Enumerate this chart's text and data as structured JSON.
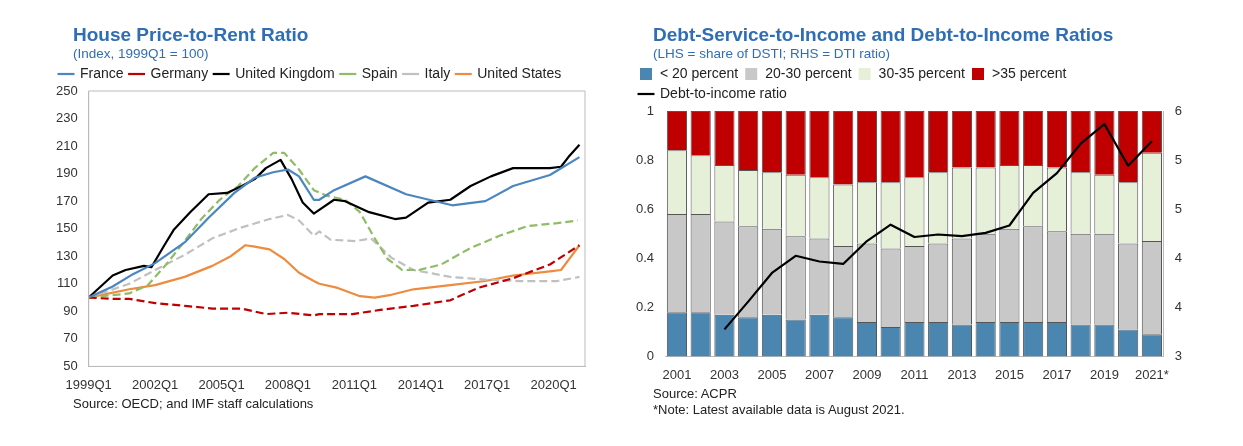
{
  "chart_data": [
    {
      "type": "line",
      "title": "House Price-to-Rent Ratio",
      "subtitle": "(Index, 1999Q1 = 100)",
      "annotations": [
        "Source: OECD; and IMF staff calculations"
      ],
      "xlim": [
        "1999-01",
        "2021-06"
      ],
      "xticks": [
        {
          "value": "1999-01",
          "label": "1999Q1"
        },
        {
          "value": "2002-01",
          "label": "2002Q1"
        },
        {
          "value": "2005-01",
          "label": "2005Q1"
        },
        {
          "value": "2008-01",
          "label": "2008Q1"
        },
        {
          "value": "2011-01",
          "label": "2011Q1"
        },
        {
          "value": "2014-01",
          "label": "2014Q1"
        },
        {
          "value": "2017-01",
          "label": "2017Q1"
        },
        {
          "value": "2020-01",
          "label": "2020Q1"
        }
      ],
      "ylim": [
        50,
        250
      ],
      "yticks": [
        50,
        70,
        90,
        110,
        130,
        150,
        170,
        190,
        210,
        230,
        250
      ],
      "legend": "top",
      "series": [
        {
          "name": "France",
          "color": "#4a86c0",
          "line_style": "solid",
          "x": [
            "1999-01",
            "2000-02",
            "2001-01",
            "2002-01",
            "2003-05",
            "2004-06",
            "2005-08",
            "2006-07",
            "2007-05",
            "2008-01",
            "2008-07",
            "2009-03",
            "2009-06",
            "2010-02",
            "2011-07",
            "2013-05",
            "2015-06",
            "2016-12",
            "2018-03",
            "2019-11",
            "2021-03"
          ],
          "values": [
            100,
            108,
            117,
            125,
            140,
            158,
            176,
            187,
            191,
            193,
            188,
            171,
            171,
            178,
            188,
            175,
            167,
            170,
            181,
            189,
            202
          ]
        },
        {
          "name": "Germany",
          "color": "#c00000",
          "line_style": "dashed",
          "x": [
            "1999-01",
            "2000-02",
            "2000-11",
            "2002-01",
            "2003-05",
            "2004-08",
            "2005-12",
            "2007-01",
            "2008-01",
            "2009-03",
            "2009-06",
            "2010-12",
            "2012-03",
            "2013-09",
            "2015-05",
            "2016-08",
            "2018-03",
            "2019-11",
            "2021-03"
          ],
          "values": [
            100,
            99,
            99,
            96,
            94,
            92,
            92,
            88,
            89,
            87,
            88,
            88,
            91,
            94,
            98,
            107,
            114,
            124,
            138
          ]
        },
        {
          "name": "United Kingdom",
          "color": "#000000",
          "line_style": "solid",
          "x": [
            "1999-01",
            "2000-02",
            "2000-09",
            "2001-07",
            "2001-11",
            "2002-06",
            "2002-11",
            "2003-08",
            "2004-06",
            "2005-04",
            "2005-12",
            "2006-07",
            "2007-01",
            "2007-09",
            "2008-03",
            "2008-09",
            "2009-03",
            "2010-02",
            "2010-08",
            "2011-09",
            "2012-11",
            "2013-05",
            "2014-05",
            "2015-05",
            "2016-04",
            "2017-03",
            "2018-03",
            "2019-11",
            "2020-05",
            "2020-09",
            "2021-03"
          ],
          "values": [
            100,
            116,
            120,
            123,
            122,
            138,
            149,
            162,
            175,
            176,
            181,
            186,
            194,
            200,
            186,
            169,
            161,
            171,
            170,
            162,
            157,
            158,
            169,
            171,
            181,
            188,
            194,
            194,
            195,
            202,
            211
          ]
        },
        {
          "name": "Spain",
          "color": "#8fbc66",
          "line_style": "dashed",
          "x": [
            "1999-01",
            "2000-11",
            "2001-09",
            "2002-07",
            "2003-05",
            "2004-02",
            "2004-12",
            "2005-10",
            "2006-07",
            "2007-05",
            "2007-11",
            "2008-07",
            "2009-03",
            "2009-10",
            "2010-08",
            "2011-04",
            "2011-12",
            "2012-07",
            "2013-03",
            "2013-12",
            "2014-12",
            "2016-04",
            "2017-08",
            "2018-11",
            "2020-03",
            "2021-02"
          ],
          "values": [
            100,
            103,
            109,
            124,
            141,
            157,
            171,
            181,
            194,
            205,
            205,
            193,
            178,
            174,
            171,
            162,
            143,
            128,
            120,
            120,
            124,
            136,
            145,
            152,
            154,
            156
          ]
        },
        {
          "name": "Italy",
          "color": "#c0c0c0",
          "line_style": "dashed",
          "x": [
            "1999-01",
            "2000-11",
            "2002-01",
            "2003-05",
            "2004-08",
            "2005-12",
            "2007-03",
            "2008-01",
            "2008-07",
            "2009-03",
            "2009-06",
            "2009-12",
            "2011-02",
            "2011-10",
            "2012-09",
            "2013-09",
            "2015-05",
            "2016-12",
            "2018-07",
            "2020-03",
            "2021-03"
          ],
          "values": [
            100,
            110,
            120,
            131,
            143,
            151,
            157,
            160,
            156,
            145,
            148,
            142,
            141,
            143,
            129,
            120,
            115,
            113,
            112,
            112,
            115
          ]
        },
        {
          "name": "United States",
          "color": "#ed8b3f",
          "line_style": "solid",
          "x": [
            "1999-01",
            "2000-11",
            "2002-01",
            "2003-05",
            "2004-08",
            "2005-06",
            "2006-02",
            "2006-07",
            "2007-03",
            "2007-11",
            "2008-07",
            "2009-03",
            "2009-06",
            "2010-04",
            "2011-04",
            "2011-12",
            "2012-09",
            "2013-09",
            "2015-05",
            "2016-12",
            "2018-03",
            "2019-11",
            "2020-05",
            "2021-03"
          ],
          "values": [
            100,
            106,
            109,
            115,
            123,
            130,
            138,
            137,
            135,
            128,
            118,
            112,
            110,
            107,
            101,
            100,
            102,
            106,
            109,
            112,
            116,
            119,
            120,
            138
          ]
        }
      ]
    },
    {
      "type": "bar",
      "title": "Debt-Service-to-Income and Debt-to-Income Ratios",
      "subtitle": "(LHS = share of DSTI; RHS = DTI ratio)",
      "annotations": [
        "Source: ACPR",
        "*Note: Latest available data is August 2021."
      ],
      "stacked": true,
      "legend": "top",
      "categories": [
        "2001",
        null,
        "2003",
        null,
        "2005",
        null,
        "2007",
        null,
        "2009",
        null,
        "2011",
        null,
        "2013",
        null,
        "2015",
        null,
        "2017",
        null,
        "2019",
        null,
        "2021*"
      ],
      "ylim": [
        0,
        1
      ],
      "yticks": [
        0,
        0.2,
        0.4,
        0.6,
        0.8,
        1
      ],
      "y2lim": [
        3,
        6
      ],
      "y2ticks": [
        3,
        {
          "value": 3.6,
          "label": "4"
        },
        {
          "value": 4.2,
          "label": "4"
        },
        {
          "value": 4.8,
          "label": "5"
        },
        {
          "value": 5.4,
          "label": "5"
        },
        6
      ],
      "series": [
        {
          "name": "< 20 percent",
          "color": "#4a86b0",
          "values": [
            0.18,
            0.18,
            0.17,
            0.16,
            0.17,
            0.15,
            0.17,
            0.16,
            0.14,
            0.12,
            0.14,
            0.14,
            0.13,
            0.14,
            0.14,
            0.14,
            0.14,
            0.13,
            0.13,
            0.11,
            0.09
          ]
        },
        {
          "name": "20-30 percent",
          "color": "#c8c8c8",
          "values": [
            0.4,
            0.4,
            0.38,
            0.37,
            0.35,
            0.34,
            0.31,
            0.29,
            0.32,
            0.32,
            0.31,
            0.32,
            0.35,
            0.36,
            0.38,
            0.39,
            0.37,
            0.37,
            0.37,
            0.35,
            0.38
          ]
        },
        {
          "name": "30-35 percent",
          "color": "#e6efd8",
          "values": [
            0.26,
            0.24,
            0.23,
            0.23,
            0.23,
            0.25,
            0.25,
            0.25,
            0.25,
            0.27,
            0.28,
            0.29,
            0.29,
            0.27,
            0.26,
            0.25,
            0.26,
            0.25,
            0.24,
            0.25,
            0.36
          ]
        },
        {
          "name": ">35 percent",
          "color": "#c00000",
          "values": [
            0.16,
            0.18,
            0.22,
            0.24,
            0.25,
            0.26,
            0.27,
            0.3,
            0.29,
            0.29,
            0.27,
            0.25,
            0.23,
            0.23,
            0.22,
            0.22,
            0.23,
            0.25,
            0.26,
            0.29,
            0.17
          ]
        },
        {
          "name": "Debt-to-income ratio",
          "type": "line",
          "axis": "y2",
          "color": "#000000",
          "values": [
            null,
            null,
            3.33,
            3.67,
            4.02,
            4.23,
            4.16,
            4.13,
            4.41,
            4.61,
            4.46,
            4.49,
            4.47,
            4.51,
            4.6,
            5.0,
            5.24,
            5.6,
            5.84,
            5.33,
            5.63
          ]
        }
      ]
    }
  ]
}
